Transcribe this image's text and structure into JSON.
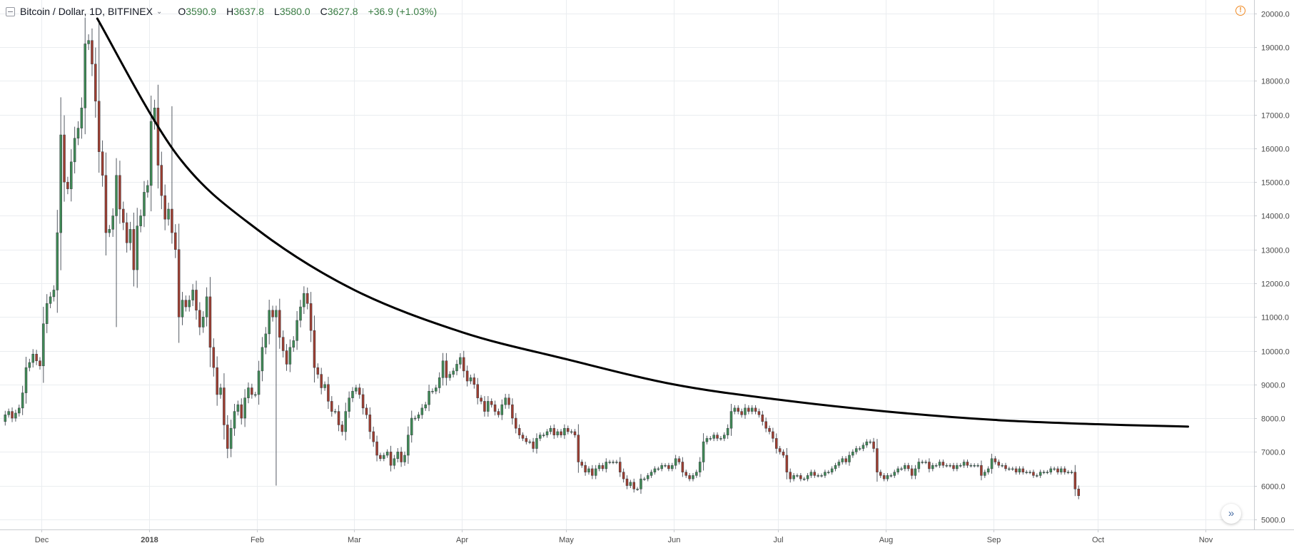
{
  "header": {
    "symbol_title": "Bitcoin / Dollar, 1D, BITFINEX",
    "chevron": "⌄",
    "ohlc": [
      {
        "key": "O",
        "value": "3590.9"
      },
      {
        "key": "H",
        "value": "3637.8"
      },
      {
        "key": "L",
        "value": "3580.0"
      },
      {
        "key": "C",
        "value": "3627.8"
      }
    ],
    "change": "+36.9 (+1.03%)"
  },
  "icons": {
    "collapse": "minus-square-icon",
    "alert": "exclamation-circle-icon",
    "alert_glyph": "!",
    "scroll": "double-chevron-right-icon",
    "scroll_glyph": "»"
  },
  "colors": {
    "up": "#3f8a55",
    "down": "#9e3d30",
    "trendline": "#000000",
    "grid": "#eaedf0",
    "axis_text": "#4a4a4a"
  },
  "chart_data": {
    "type": "candlestick",
    "title": "Bitcoin / Dollar, 1D, BITFINEX",
    "xlabel": "",
    "ylabel": "",
    "ylim": [
      4700,
      20400
    ],
    "y_ticks": [
      "5000.0",
      "6000.0",
      "7000.0",
      "8000.0",
      "9000.0",
      "10000.0",
      "11000.0",
      "12000.0",
      "13000.0",
      "14000.0",
      "15000.0",
      "16000.0",
      "17000.0",
      "18000.0",
      "19000.0",
      "20000.0"
    ],
    "x_ticks": [
      {
        "label": "Dec",
        "date": "2017-12-01",
        "bold": false
      },
      {
        "label": "2018",
        "date": "2018-01-01",
        "bold": true
      },
      {
        "label": "Feb",
        "date": "2018-02-01",
        "bold": false
      },
      {
        "label": "Mar",
        "date": "2018-03-01",
        "bold": false
      },
      {
        "label": "Apr",
        "date": "2018-04-01",
        "bold": false
      },
      {
        "label": "May",
        "date": "2018-05-01",
        "bold": false
      },
      {
        "label": "Jun",
        "date": "2018-06-01",
        "bold": false
      },
      {
        "label": "Jul",
        "date": "2018-07-01",
        "bold": false
      },
      {
        "label": "Aug",
        "date": "2018-08-01",
        "bold": false
      },
      {
        "label": "Sep",
        "date": "2018-09-01",
        "bold": false
      },
      {
        "label": "Oct",
        "date": "2018-10-01",
        "bold": false
      },
      {
        "label": "Nov",
        "date": "2018-11-01",
        "bold": false
      }
    ],
    "x_range": [
      "2017-11-19",
      "2018-11-15"
    ],
    "grid": true,
    "candles": {
      "start_date": "2017-11-20",
      "close": [
        8100,
        8200,
        8000,
        8150,
        8300,
        8750,
        9500,
        9650,
        9900,
        9700,
        9550,
        10800,
        11400,
        11600,
        11800,
        13500,
        16400,
        15000,
        14800,
        15600,
        16300,
        16600,
        17200,
        19100,
        19200,
        18500,
        17400,
        15900,
        15200,
        13500,
        13600,
        14000,
        15200,
        14200,
        13800,
        13200,
        13600,
        12400,
        13700,
        14000,
        14700,
        14900,
        16800,
        17200,
        15500,
        14600,
        13900,
        14200,
        13500,
        13000,
        11000,
        11500,
        11300,
        11500,
        11800,
        11200,
        10700,
        11000,
        11600,
        10100,
        9500,
        8700,
        8900,
        7800,
        7100,
        7700,
        8200,
        8400,
        8000,
        8600,
        8900,
        8700,
        8700,
        9400,
        10100,
        10500,
        11200,
        11000,
        11200,
        10400,
        10000,
        9600,
        10100,
        10300,
        10900,
        11300,
        11700,
        11400,
        10600,
        9500,
        9300,
        8900,
        9000,
        8500,
        8200,
        8200,
        7800,
        7600,
        8200,
        8600,
        8800,
        8900,
        8700,
        8300,
        8100,
        7600,
        7300,
        6900,
        6800,
        6900,
        7000,
        6600,
        6800,
        7000,
        6700,
        6900,
        7500,
        8000,
        8000,
        8100,
        8300,
        8400,
        8800,
        8800,
        8900,
        9200,
        9700,
        9200,
        9300,
        9400,
        9600,
        9800,
        9400,
        9100,
        9200,
        9000,
        8600,
        8500,
        8200,
        8500,
        8400,
        8200,
        8100,
        8400,
        8600,
        8400,
        8000,
        7700,
        7500,
        7400,
        7300,
        7300,
        7100,
        7400,
        7500,
        7500,
        7600,
        7700,
        7500,
        7600,
        7500,
        7700,
        7600,
        7600,
        7500,
        6700,
        6600,
        6400,
        6500,
        6300,
        6500,
        6600,
        6500,
        6700,
        6700,
        6700,
        6700,
        6400,
        6200,
        6000,
        6100,
        5900,
        5900,
        6200,
        6200,
        6300,
        6400,
        6500,
        6500,
        6600,
        6600,
        6500,
        6600,
        6800,
        6700,
        6400,
        6300,
        6200,
        6300,
        6400,
        6700,
        7300,
        7400,
        7400,
        7500,
        7400,
        7400,
        7500,
        7700,
        8200,
        8300,
        8200,
        8100,
        8300,
        8200,
        8300,
        8200,
        8100,
        7900,
        7700,
        7600,
        7400,
        7100,
        7000,
        6900,
        6400,
        6200,
        6300,
        6300,
        6200,
        6200,
        6300,
        6400,
        6300,
        6300,
        6300,
        6400,
        6400,
        6500,
        6600,
        6700,
        6800,
        6700,
        6900,
        7000,
        7100,
        7100,
        7200,
        7300,
        7300,
        7100,
        6400,
        6300,
        6200,
        6300,
        6300,
        6400,
        6500,
        6500,
        6600,
        6500,
        6300,
        6500,
        6700,
        6700,
        6700,
        6500,
        6600,
        6600,
        6700,
        6600,
        6600,
        6600,
        6500,
        6600,
        6600,
        6700,
        6600,
        6600,
        6600,
        6600,
        6300,
        6400,
        6500,
        6800,
        6700,
        6600,
        6600,
        6500,
        6500,
        6500,
        6400,
        6500,
        6400,
        6400,
        6400,
        6300,
        6300,
        6400,
        6400,
        6400,
        6500,
        6500,
        6400,
        6500,
        6400,
        6400,
        6400,
        5900,
        5700
      ],
      "open": [
        7900,
        8100,
        8200,
        8000,
        8150,
        8300,
        8750,
        9500,
        9650,
        9900,
        9700,
        9550,
        10800,
        11400,
        11600,
        11800,
        13500,
        16400,
        15000,
        14800,
        15600,
        16300,
        16600,
        17200,
        19100,
        19200,
        18500,
        17400,
        15900,
        15200,
        13500,
        13600,
        14000,
        15200,
        14200,
        13800,
        13200,
        13600,
        12400,
        13700,
        14000,
        14700,
        14900,
        16800,
        17200,
        15500,
        14600,
        13900,
        14200,
        13500,
        13000,
        11000,
        11500,
        11300,
        11500,
        11800,
        11200,
        10700,
        11000,
        11600,
        10100,
        9500,
        8700,
        8900,
        7800,
        7100,
        7700,
        8200,
        8400,
        8000,
        8600,
        8900,
        8700,
        8700,
        9400,
        10100,
        10500,
        11200,
        11000,
        11200,
        10400,
        10000,
        9600,
        10100,
        10300,
        10900,
        11300,
        11700,
        11400,
        10600,
        9500,
        9300,
        8900,
        9000,
        8500,
        8200,
        8200,
        7800,
        7600,
        8200,
        8600,
        8800,
        8900,
        8700,
        8300,
        8100,
        7600,
        7300,
        6900,
        6800,
        6900,
        7000,
        6600,
        6800,
        7000,
        6700,
        6900,
        7500,
        8000,
        8000,
        8100,
        8300,
        8400,
        8800,
        8800,
        8900,
        9200,
        9700,
        9200,
        9300,
        9400,
        9600,
        9800,
        9400,
        9100,
        9200,
        9000,
        8600,
        8500,
        8200,
        8500,
        8400,
        8200,
        8100,
        8400,
        8600,
        8400,
        8000,
        7700,
        7500,
        7400,
        7300,
        7300,
        7100,
        7400,
        7500,
        7500,
        7600,
        7700,
        7500,
        7600,
        7500,
        7700,
        7600,
        7600,
        7500,
        6700,
        6600,
        6400,
        6500,
        6300,
        6500,
        6600,
        6500,
        6700,
        6700,
        6700,
        6700,
        6400,
        6200,
        6000,
        6100,
        5900,
        5900,
        6200,
        6200,
        6300,
        6400,
        6500,
        6500,
        6600,
        6600,
        6500,
        6600,
        6800,
        6700,
        6400,
        6300,
        6200,
        6300,
        6400,
        6700,
        7300,
        7400,
        7400,
        7500,
        7400,
        7400,
        7500,
        7700,
        8200,
        8300,
        8200,
        8100,
        8300,
        8200,
        8300,
        8200,
        8100,
        7900,
        7700,
        7600,
        7400,
        7100,
        7000,
        6900,
        6400,
        6200,
        6300,
        6300,
        6200,
        6200,
        6300,
        6400,
        6300,
        6300,
        6300,
        6400,
        6400,
        6500,
        6600,
        6700,
        6800,
        6700,
        6900,
        7000,
        7100,
        7100,
        7200,
        7300,
        7300,
        7100,
        6400,
        6300,
        6200,
        6300,
        6300,
        6400,
        6500,
        6500,
        6600,
        6500,
        6300,
        6500,
        6700,
        6700,
        6700,
        6500,
        6600,
        6600,
        6700,
        6600,
        6600,
        6600,
        6500,
        6600,
        6600,
        6700,
        6600,
        6600,
        6600,
        6600,
        6300,
        6400,
        6500,
        6800,
        6700,
        6600,
        6600,
        6500,
        6500,
        6500,
        6400,
        6500,
        6400,
        6400,
        6400,
        6300,
        6300,
        6400,
        6400,
        6400,
        6500,
        6500,
        6400,
        6500,
        6400,
        6400,
        6400,
        5900
      ],
      "notable_wicks": [
        {
          "date": "2017-12-17",
          "high": 19800
        },
        {
          "date": "2017-12-22",
          "low": 10700
        },
        {
          "date": "2018-01-07",
          "high": 17250
        },
        {
          "date": "2018-02-06",
          "low": 6000
        },
        {
          "date": "2018-10-15",
          "high": 7800
        },
        {
          "date": "2018-11-14",
          "low": 5700
        }
      ]
    },
    "trendline": {
      "type": "exponential-decay",
      "points": [
        {
          "date": "2017-12-17",
          "value": 19850
        },
        {
          "date": "2018-01-09",
          "value": 15800
        },
        {
          "date": "2018-02-01",
          "value": 13600
        },
        {
          "date": "2018-03-01",
          "value": 11800
        },
        {
          "date": "2018-04-01",
          "value": 10550
        },
        {
          "date": "2018-05-01",
          "value": 9750
        },
        {
          "date": "2018-06-01",
          "value": 9000
        },
        {
          "date": "2018-07-01",
          "value": 8550
        },
        {
          "date": "2018-08-01",
          "value": 8200
        },
        {
          "date": "2018-09-01",
          "value": 7950
        },
        {
          "date": "2018-10-01",
          "value": 7820
        },
        {
          "date": "2018-10-27",
          "value": 7750
        }
      ]
    }
  }
}
